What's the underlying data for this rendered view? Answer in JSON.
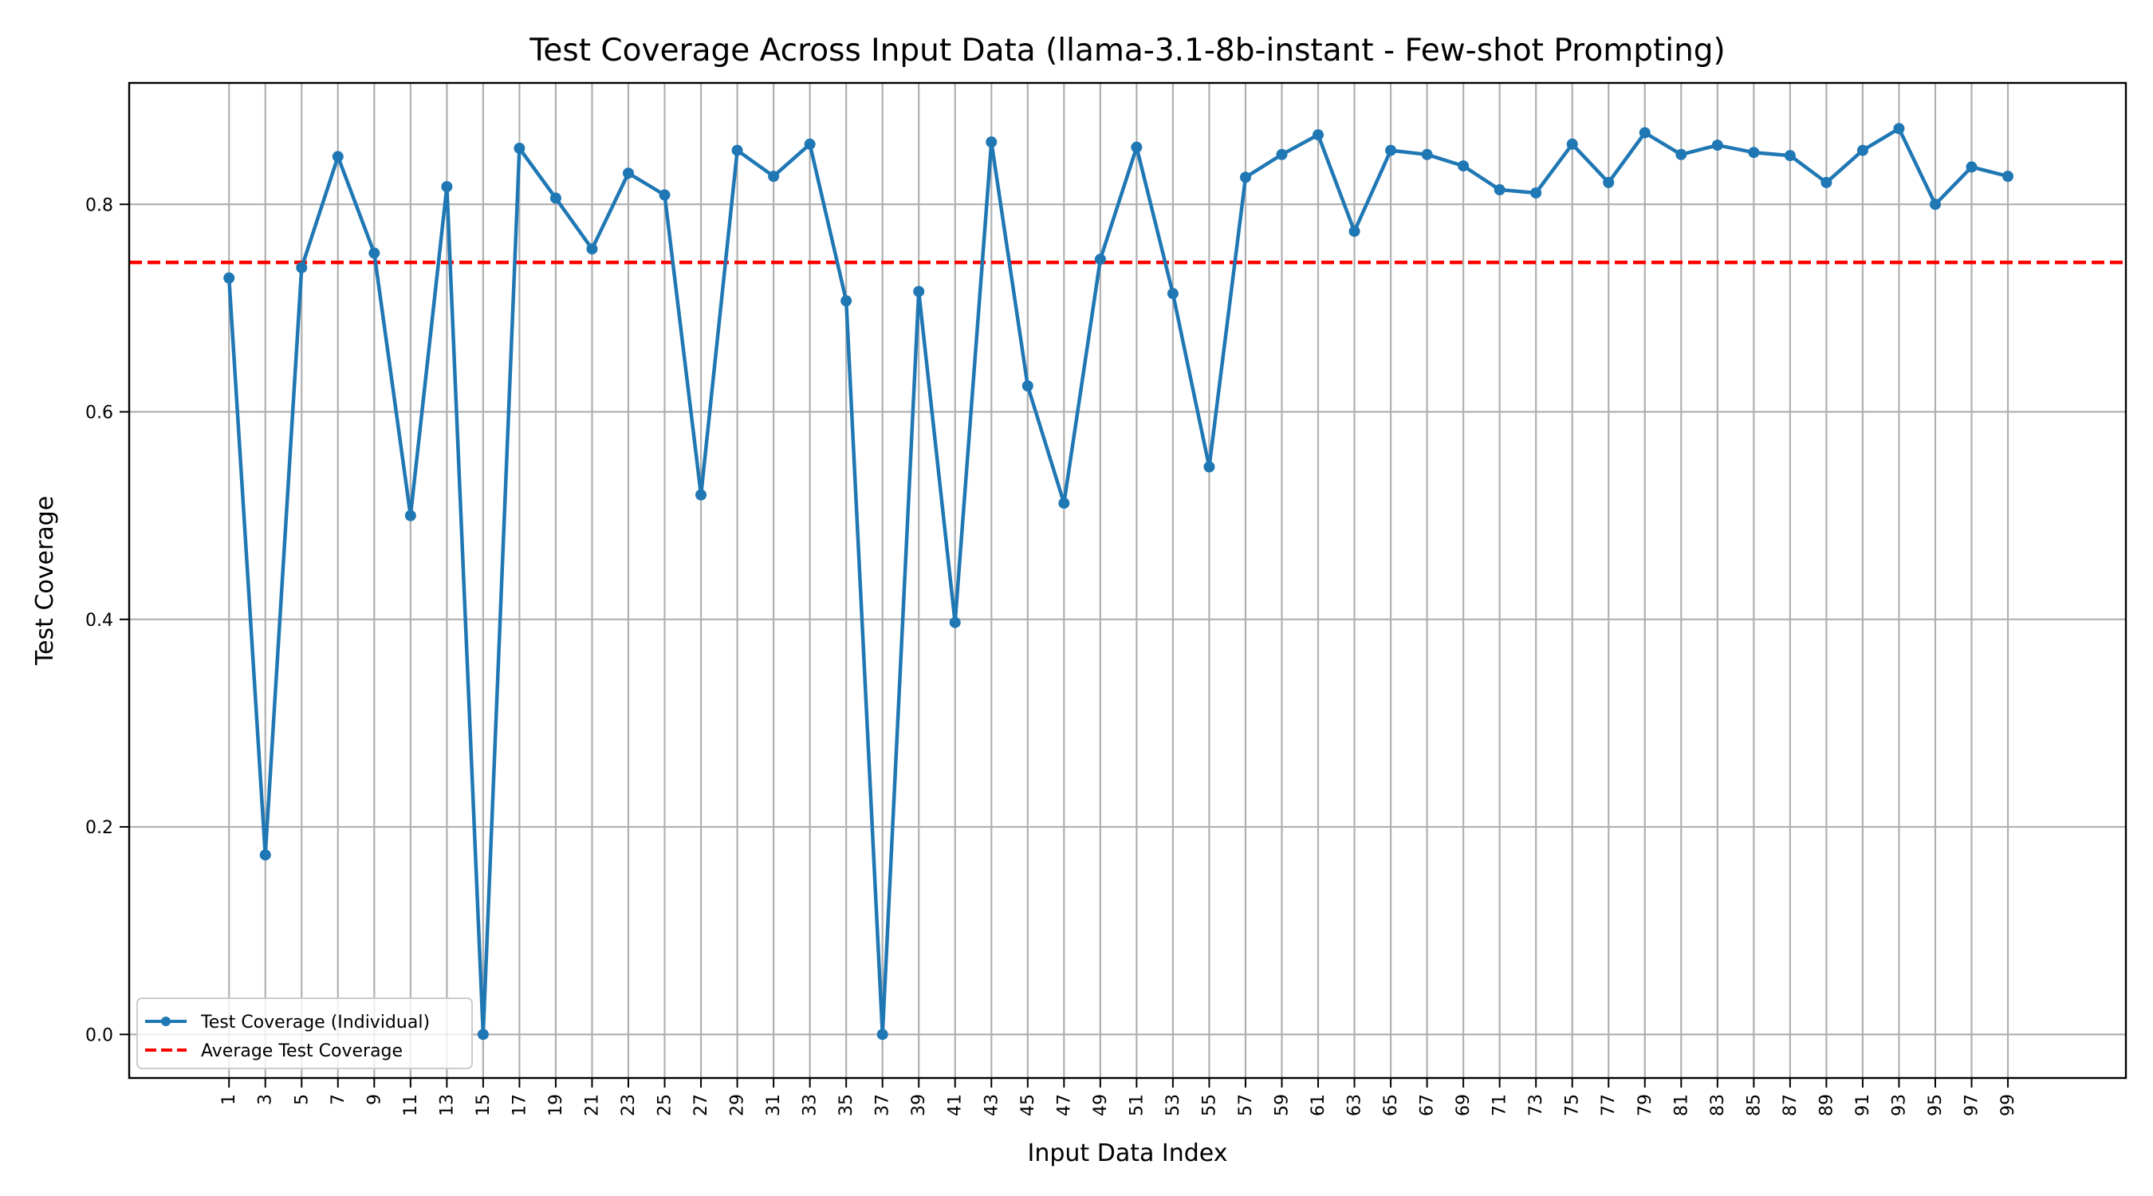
{
  "chart_data": {
    "type": "line",
    "title": "Test Coverage Across Input Data (llama-3.1-8b-instant - Few-shot Prompting)",
    "xlabel": "Input Data Index",
    "ylabel": "Test Coverage",
    "x": [
      1,
      3,
      5,
      7,
      9,
      11,
      13,
      15,
      17,
      19,
      21,
      23,
      25,
      27,
      29,
      31,
      33,
      35,
      37,
      39,
      41,
      43,
      45,
      47,
      49,
      51,
      53,
      55,
      57,
      59,
      61,
      63,
      65,
      67,
      69,
      71,
      73,
      75,
      77,
      79,
      81,
      83,
      85,
      87,
      89,
      91,
      93,
      95,
      97,
      99
    ],
    "xticks": [
      "1",
      "3",
      "5",
      "7",
      "9",
      "11",
      "13",
      "15",
      "17",
      "19",
      "21",
      "23",
      "25",
      "27",
      "29",
      "31",
      "33",
      "35",
      "37",
      "39",
      "41",
      "43",
      "45",
      "47",
      "49",
      "51",
      "53",
      "55",
      "57",
      "59",
      "61",
      "63",
      "65",
      "67",
      "69",
      "71",
      "73",
      "75",
      "77",
      "79",
      "81",
      "83",
      "85",
      "87",
      "89",
      "91",
      "93",
      "95",
      "97",
      "99"
    ],
    "yticks": [
      "0.0",
      "0.2",
      "0.4",
      "0.6",
      "0.8"
    ],
    "xlim": [
      -4.5,
      105.5
    ],
    "ylim": [
      -0.042,
      0.917
    ],
    "grid": true,
    "legend_position": "lower-left",
    "series": [
      {
        "name": "Test Coverage (Individual)",
        "color": "#1f77b4",
        "style": "solid-with-markers",
        "values": [
          0.729,
          0.173,
          0.739,
          0.846,
          0.753,
          0.5,
          0.817,
          0.0,
          0.854,
          0.806,
          0.757,
          0.83,
          0.809,
          0.52,
          0.852,
          0.827,
          0.858,
          0.707,
          0.0,
          0.716,
          0.397,
          0.86,
          0.625,
          0.512,
          0.747,
          0.855,
          0.714,
          0.547,
          0.826,
          0.848,
          0.867,
          0.774,
          0.852,
          0.848,
          0.837,
          0.814,
          0.811,
          0.858,
          0.821,
          0.869,
          0.848,
          0.857,
          0.85,
          0.847,
          0.821,
          0.852,
          0.873,
          0.8,
          0.836,
          0.827
        ]
      },
      {
        "name": "Average Test Coverage",
        "color": "#ff0000",
        "style": "dashed",
        "value": 0.744
      }
    ]
  }
}
